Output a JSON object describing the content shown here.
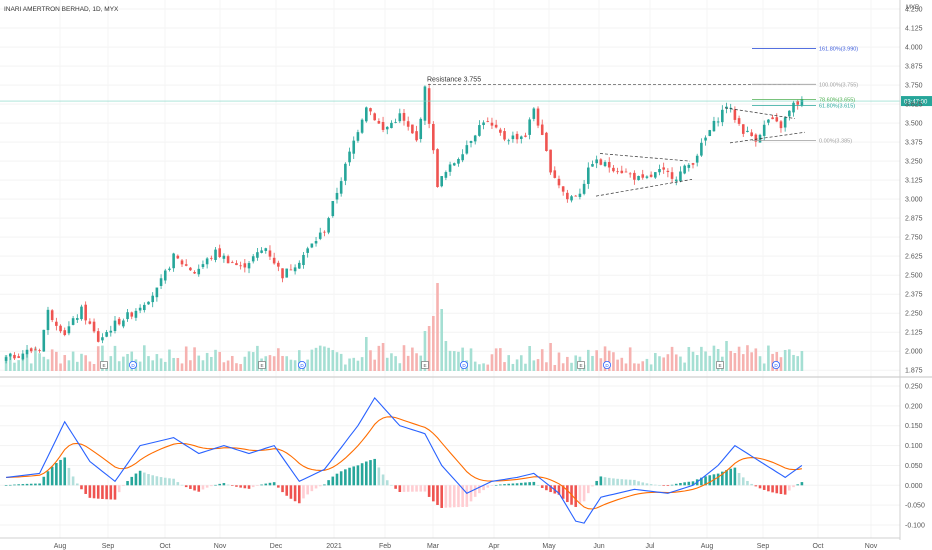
{
  "chart_data": [
    {
      "type": "candlestick",
      "title": "INARI AMERTRON BERHAD, 1D, MYX",
      "currency": "MYR",
      "price_axis_ticks": [
        4.25,
        4.125,
        4.0,
        3.875,
        3.75,
        3.625,
        3.5,
        3.375,
        3.25,
        3.125,
        3.0,
        2.875,
        2.75,
        2.625,
        2.5,
        2.375,
        2.25,
        2.125,
        2.0,
        1.875
      ],
      "price_axis_tick_labels": [
        "4.250",
        "4.125",
        "4.000",
        "3.875",
        "3.750",
        "3.625",
        "3.500",
        "3.375",
        "3.250",
        "3.125",
        "3.000",
        "2.875",
        "2.750",
        "2.625",
        "2.500",
        "2.375",
        "2.250",
        "2.125",
        "2.000",
        "1.875"
      ],
      "ylim": [
        1.87,
        4.27
      ],
      "x_ticks": [
        "Aug",
        "Sep",
        "Oct",
        "Nov",
        "Dec",
        "2021",
        "Feb",
        "Mar",
        "Apr",
        "May",
        "Jun",
        "Jul",
        "Aug",
        "Sep",
        "Oct",
        "Nov"
      ],
      "last_price": 3.645,
      "last_price_label": "03:47:00",
      "annotations": {
        "resistance": {
          "label": "Resistance 3.755",
          "value": 3.755
        },
        "fib_levels": [
          {
            "label": "161.80%(3.990)",
            "value": 3.99
          },
          {
            "label": "100.00%(3.755)",
            "value": 3.755
          },
          {
            "label": "78.60%(3.655)",
            "value": 3.655
          },
          {
            "label": "61.80%(3.615)",
            "value": 3.615
          },
          {
            "label": "0.00%(3.385)",
            "value": 3.385
          }
        ]
      },
      "earnings_markers": [
        "E",
        "D",
        "E",
        "D",
        "E",
        "D",
        "E",
        "D",
        "E",
        "D"
      ],
      "anchors": [
        {
          "x": 0,
          "price": 1.95
        },
        {
          "x": 4,
          "price": 1.99
        },
        {
          "x": 8,
          "price": 2.02
        },
        {
          "x": 10,
          "price": 2.26
        },
        {
          "x": 14,
          "price": 2.12
        },
        {
          "x": 18,
          "price": 2.27
        },
        {
          "x": 22,
          "price": 2.07
        },
        {
          "x": 26,
          "price": 2.18
        },
        {
          "x": 30,
          "price": 2.25
        },
        {
          "x": 36,
          "price": 2.4
        },
        {
          "x": 40,
          "price": 2.62
        },
        {
          "x": 45,
          "price": 2.52
        },
        {
          "x": 50,
          "price": 2.65
        },
        {
          "x": 56,
          "price": 2.55
        },
        {
          "x": 62,
          "price": 2.68
        },
        {
          "x": 66,
          "price": 2.5
        },
        {
          "x": 70,
          "price": 2.6
        },
        {
          "x": 76,
          "price": 2.8
        },
        {
          "x": 82,
          "price": 3.3
        },
        {
          "x": 86,
          "price": 3.62
        },
        {
          "x": 90,
          "price": 3.45
        },
        {
          "x": 94,
          "price": 3.55
        },
        {
          "x": 98,
          "price": 3.38
        },
        {
          "x": 100,
          "price": 3.72
        },
        {
          "x": 103,
          "price": 3.1
        },
        {
          "x": 108,
          "price": 3.28
        },
        {
          "x": 114,
          "price": 3.52
        },
        {
          "x": 119,
          "price": 3.4
        },
        {
          "x": 124,
          "price": 3.42
        },
        {
          "x": 126,
          "price": 3.6
        },
        {
          "x": 130,
          "price": 3.2
        },
        {
          "x": 134,
          "price": 3.0
        },
        {
          "x": 137,
          "price": 3.05
        },
        {
          "x": 140,
          "price": 3.25
        },
        {
          "x": 146,
          "price": 3.2
        },
        {
          "x": 152,
          "price": 3.12
        },
        {
          "x": 156,
          "price": 3.18
        },
        {
          "x": 160,
          "price": 3.15
        },
        {
          "x": 164,
          "price": 3.25
        },
        {
          "x": 168,
          "price": 3.45
        },
        {
          "x": 172,
          "price": 3.62
        },
        {
          "x": 176,
          "price": 3.45
        },
        {
          "x": 179,
          "price": 3.4
        },
        {
          "x": 182,
          "price": 3.52
        },
        {
          "x": 185,
          "price": 3.48
        },
        {
          "x": 188,
          "price": 3.62
        },
        {
          "x": 190,
          "price": 3.645
        }
      ]
    },
    {
      "type": "macd",
      "axis_ticks": [
        0.25,
        0.2,
        0.15,
        0.1,
        0.05,
        0.0,
        -0.05,
        -0.1
      ],
      "axis_tick_labels": [
        "0.250",
        "0.200",
        "0.150",
        "0.100",
        "0.050",
        "0.000",
        "-0.050",
        "-0.100"
      ],
      "ylim": [
        -0.115,
        0.255
      ],
      "macd_anchors": [
        {
          "x": 0,
          "value": 0.02
        },
        {
          "x": 8,
          "value": 0.03
        },
        {
          "x": 14,
          "value": 0.16
        },
        {
          "x": 20,
          "value": 0.06
        },
        {
          "x": 26,
          "value": 0.01
        },
        {
          "x": 32,
          "value": 0.1
        },
        {
          "x": 40,
          "value": 0.12
        },
        {
          "x": 46,
          "value": 0.08
        },
        {
          "x": 52,
          "value": 0.1
        },
        {
          "x": 58,
          "value": 0.08
        },
        {
          "x": 64,
          "value": 0.1
        },
        {
          "x": 70,
          "value": 0.01
        },
        {
          "x": 76,
          "value": 0.04
        },
        {
          "x": 84,
          "value": 0.15
        },
        {
          "x": 88,
          "value": 0.22
        },
        {
          "x": 94,
          "value": 0.15
        },
        {
          "x": 100,
          "value": 0.13
        },
        {
          "x": 104,
          "value": 0.05
        },
        {
          "x": 110,
          "value": -0.02
        },
        {
          "x": 116,
          "value": 0.01
        },
        {
          "x": 122,
          "value": 0.02
        },
        {
          "x": 126,
          "value": 0.03
        },
        {
          "x": 132,
          "value": -0.02
        },
        {
          "x": 136,
          "value": -0.09
        },
        {
          "x": 138,
          "value": -0.095
        },
        {
          "x": 142,
          "value": -0.03
        },
        {
          "x": 150,
          "value": -0.01
        },
        {
          "x": 158,
          "value": -0.02
        },
        {
          "x": 164,
          "value": 0.0
        },
        {
          "x": 170,
          "value": 0.05
        },
        {
          "x": 174,
          "value": 0.1
        },
        {
          "x": 180,
          "value": 0.06
        },
        {
          "x": 186,
          "value": 0.02
        },
        {
          "x": 190,
          "value": 0.05
        }
      ]
    }
  ]
}
